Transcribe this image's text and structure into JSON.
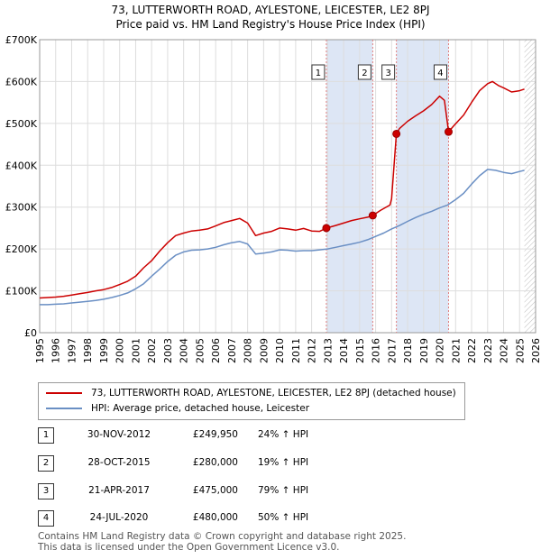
{
  "title_line1": "73, LUTTERWORTH ROAD, AYLESTONE, LEICESTER, LE2 8PJ",
  "title_line2": "Price paid vs. HM Land Registry's House Price Index (HPI)",
  "colors": {
    "property": "#cc0000",
    "hpi": "#6a8fc4",
    "band": "#dde6f5",
    "grid": "#dddddd",
    "vline": "#e08080"
  },
  "chart_data": {
    "type": "line",
    "ylim": [
      0,
      700000
    ],
    "xlim": [
      1995,
      2026
    ],
    "y_ticks": [
      {
        "value": 0,
        "label": "£0"
      },
      {
        "value": 100000,
        "label": "£100K"
      },
      {
        "value": 200000,
        "label": "£200K"
      },
      {
        "value": 300000,
        "label": "£300K"
      },
      {
        "value": 400000,
        "label": "£400K"
      },
      {
        "value": 500000,
        "label": "£500K"
      },
      {
        "value": 600000,
        "label": "£600K"
      },
      {
        "value": 700000,
        "label": "£700K"
      }
    ],
    "x_ticks": [
      "1995",
      "1996",
      "1997",
      "1998",
      "1999",
      "2000",
      "2001",
      "2002",
      "2003",
      "2004",
      "2005",
      "2006",
      "2007",
      "2008",
      "2009",
      "2010",
      "2011",
      "2012",
      "2013",
      "2014",
      "2015",
      "2016",
      "2017",
      "2018",
      "2019",
      "2020",
      "2021",
      "2022",
      "2023",
      "2024",
      "2025",
      "2026"
    ],
    "data_end": 2025.3,
    "series": [
      {
        "name": "73, LUTTERWORTH ROAD, AYLESTONE, LEICESTER, LE2 8PJ (detached house)",
        "x": [
          1995,
          1995.5,
          1996,
          1996.5,
          1997,
          1997.5,
          1998,
          1998.5,
          1999,
          1999.5,
          2000,
          2000.5,
          2001,
          2001.5,
          2002,
          2002.5,
          2003,
          2003.5,
          2004,
          2004.5,
          2005,
          2005.5,
          2006,
          2006.5,
          2007,
          2007.5,
          2008,
          2008.5,
          2009,
          2009.5,
          2010,
          2010.5,
          2011,
          2011.5,
          2012,
          2012.5,
          2012.92,
          2013.5,
          2014,
          2014.5,
          2015,
          2015.5,
          2015.82,
          2016.3,
          2016.9,
          2017.0,
          2017.3,
          2017.5,
          2018,
          2018.5,
          2019,
          2019.5,
          2020,
          2020.3,
          2020.56,
          2020.9,
          2021.5,
          2022,
          2022.5,
          2023,
          2023.3,
          2023.7,
          2024,
          2024.5,
          2025,
          2025.3
        ],
        "values": [
          83000,
          84000,
          85000,
          87000,
          90000,
          93000,
          96000,
          100000,
          103000,
          108000,
          115000,
          123000,
          135000,
          155000,
          172000,
          195000,
          215000,
          232000,
          238000,
          243000,
          245000,
          248000,
          255000,
          263000,
          268000,
          273000,
          262000,
          232000,
          238000,
          242000,
          250000,
          248000,
          245000,
          249000,
          243000,
          242000,
          249950,
          256000,
          262000,
          268000,
          272000,
          276000,
          280000,
          292000,
          305000,
          320000,
          475000,
          488000,
          505000,
          518000,
          530000,
          545000,
          565000,
          555000,
          480000,
          495000,
          520000,
          550000,
          578000,
          595000,
          600000,
          590000,
          585000,
          575000,
          578000,
          582000
        ]
      },
      {
        "name": "HPI: Average price, detached house, Leicester",
        "x": [
          1995,
          1995.5,
          1996,
          1996.5,
          1997,
          1997.5,
          1998,
          1998.5,
          1999,
          1999.5,
          2000,
          2000.5,
          2001,
          2001.5,
          2002,
          2002.5,
          2003,
          2003.5,
          2004,
          2004.5,
          2005,
          2005.5,
          2006,
          2006.5,
          2007,
          2007.5,
          2008,
          2008.5,
          2009,
          2009.5,
          2010,
          2010.5,
          2011,
          2011.5,
          2012,
          2012.5,
          2013,
          2013.5,
          2014,
          2014.5,
          2015,
          2015.5,
          2016,
          2016.5,
          2017,
          2017.5,
          2018,
          2018.5,
          2019,
          2019.5,
          2020,
          2020.5,
          2021,
          2021.5,
          2022,
          2022.5,
          2023,
          2023.5,
          2024,
          2024.5,
          2025,
          2025.3
        ],
        "values": [
          67000,
          67000,
          68000,
          69000,
          71000,
          73000,
          75000,
          77000,
          80000,
          84000,
          89000,
          95000,
          105000,
          117000,
          135000,
          152000,
          170000,
          185000,
          193000,
          197000,
          198000,
          200000,
          204000,
          210000,
          215000,
          218000,
          212000,
          188000,
          190000,
          193000,
          198000,
          197000,
          195000,
          196000,
          196000,
          198000,
          200000,
          204000,
          208000,
          212000,
          216000,
          222000,
          230000,
          238000,
          248000,
          256000,
          266000,
          275000,
          283000,
          290000,
          298000,
          305000,
          318000,
          333000,
          355000,
          375000,
          390000,
          388000,
          383000,
          380000,
          385000,
          388000
        ]
      }
    ],
    "transactions": [
      {
        "num": "1",
        "date": "30-NOV-2012",
        "x": 2012.92,
        "value": 249950,
        "price": "£249,950",
        "hpi": "24% ↑ HPI"
      },
      {
        "num": "2",
        "date": "28-OCT-2015",
        "x": 2015.82,
        "value": 280000,
        "price": "£280,000",
        "hpi": "19% ↑ HPI"
      },
      {
        "num": "3",
        "date": "21-APR-2017",
        "x": 2017.3,
        "value": 475000,
        "price": "£475,000",
        "hpi": "79% ↑ HPI"
      },
      {
        "num": "4",
        "date": "24-JUL-2020",
        "x": 2020.56,
        "value": 480000,
        "price": "£480,000",
        "hpi": "50% ↑ HPI"
      }
    ],
    "bands": [
      [
        2012.92,
        2015.82
      ],
      [
        2017.3,
        2020.56
      ]
    ]
  },
  "legend": {
    "property_label": "73, LUTTERWORTH ROAD, AYLESTONE, LEICESTER, LE2 8PJ (detached house)",
    "hpi_label": "HPI: Average price, detached house, Leicester"
  },
  "footer_line1": "Contains HM Land Registry data © Crown copyright and database right 2025.",
  "footer_line2": "This data is licensed under the Open Government Licence v3.0."
}
